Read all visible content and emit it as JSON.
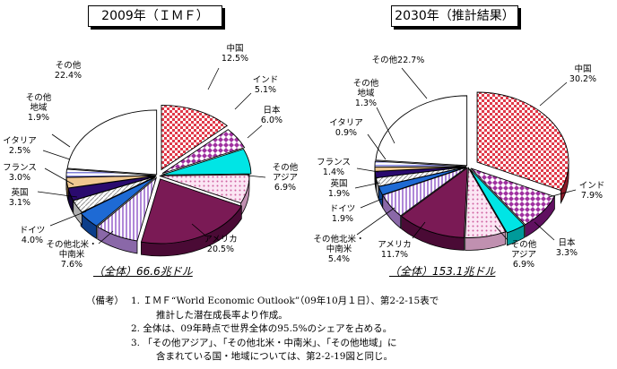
{
  "chart_data": [
    {
      "type": "pie",
      "title": "2009年（ＩＭＦ）",
      "total_label": "（全体）66.6兆ドル",
      "unit": "%",
      "slices": [
        {
          "name": "中国",
          "value": 12.5,
          "value_label": "12.5%"
        },
        {
          "name": "インド",
          "value": 5.1,
          "value_label": "5.1%"
        },
        {
          "name": "日本",
          "value": 6.0,
          "value_label": "6.0%"
        },
        {
          "name": "その他アジア",
          "value": 6.9,
          "value_label": "6.9%"
        },
        {
          "name": "アメリカ",
          "value": 20.5,
          "value_label": "20.5%"
        },
        {
          "name": "その他北米・中南米",
          "value": 7.6,
          "value_label": "7.6%"
        },
        {
          "name": "ドイツ",
          "value": 4.0,
          "value_label": "4.0%"
        },
        {
          "name": "英国",
          "value": 3.1,
          "value_label": "3.1%"
        },
        {
          "name": "フランス",
          "value": 3.0,
          "value_label": "3.0%"
        },
        {
          "name": "イタリア",
          "value": 2.5,
          "value_label": "2.5%"
        },
        {
          "name": "その他地域",
          "value": 1.9,
          "value_label": "1.9%"
        },
        {
          "name": "その他",
          "value": 22.4,
          "value_label": "22.4%"
        }
      ]
    },
    {
      "type": "pie",
      "title": "2030年（推計結果）",
      "total_label": "（全体）153.1兆ドル",
      "unit": "%",
      "slices": [
        {
          "name": "中国",
          "value": 30.2,
          "value_label": "30.2%"
        },
        {
          "name": "インド",
          "value": 7.9,
          "value_label": "7.9%"
        },
        {
          "name": "日本",
          "value": 3.3,
          "value_label": "3.3%"
        },
        {
          "name": "その他アジア",
          "value": 6.9,
          "value_label": "6.9%"
        },
        {
          "name": "アメリカ",
          "value": 11.7,
          "value_label": "11.7%"
        },
        {
          "name": "その他北米・中南米",
          "value": 5.4,
          "value_label": "5.4%"
        },
        {
          "name": "ドイツ",
          "value": 1.9,
          "value_label": "1.9%"
        },
        {
          "name": "英国",
          "value": 1.9,
          "value_label": "1.9%"
        },
        {
          "name": "フランス",
          "value": 1.4,
          "value_label": "1.4%"
        },
        {
          "name": "イタリア",
          "value": 0.9,
          "value_label": "0.9%"
        },
        {
          "name": "その他地域",
          "value": 1.3,
          "value_label": "1.3%"
        },
        {
          "name": "その他",
          "value": 22.7,
          "value_label": "22.7%"
        }
      ]
    }
  ],
  "slice_labels": {
    "left": [
      [
        "中国",
        "12.5%"
      ],
      [
        "インド",
        "5.1%"
      ],
      [
        "日本",
        "6.0%"
      ],
      [
        "その他",
        "アジア",
        "6.9%"
      ],
      [
        "アメリカ",
        "20.5%"
      ],
      [
        "その他北米・",
        "中南米",
        "7.6%"
      ],
      [
        "ドイツ",
        "4.0%"
      ],
      [
        "英国",
        "3.1%"
      ],
      [
        "フランス",
        "3.0%"
      ],
      [
        "イタリア",
        "2.5%"
      ],
      [
        "その他",
        "地域",
        "1.9%"
      ],
      [
        "その他",
        "22.4%"
      ]
    ],
    "right": [
      [
        "中国",
        "30.2%"
      ],
      [
        "インド",
        "7.9%"
      ],
      [
        "日本",
        "3.3%"
      ],
      [
        "その他",
        "アジア",
        "6.9%"
      ],
      [
        "アメリカ",
        "11.7%"
      ],
      [
        "その他北米・",
        "中南米",
        "5.4%"
      ],
      [
        "ドイツ",
        "1.9%"
      ],
      [
        "英国",
        "1.9%"
      ],
      [
        "フランス",
        "1.4%"
      ],
      [
        "イタリア",
        "0.9%"
      ],
      [
        "その他",
        "地域",
        "1.3%"
      ],
      [
        "その他22.7%"
      ]
    ]
  },
  "slice_colors": [
    "#e03a4a",
    "#a030a0",
    "#00e5e5",
    "#f4c8e8",
    "#7a1a55",
    "#c8a8e0",
    "#1e6ad4",
    "#ffffff",
    "#2a0a6e",
    "#f0c890",
    "#9090e0",
    "#ffffff"
  ],
  "notes": {
    "label": "（備考）",
    "items": [
      {
        "num": "1.",
        "lines": [
          "ＩＭＦ“World Economic Outlook”（09年10月１日）、第2-2-15表で",
          "推計した潜在成長率より作成。"
        ]
      },
      {
        "num": "2.",
        "lines": [
          "全体は、09年時点で世界全体の95.5%のシェアを占める。"
        ]
      },
      {
        "num": "3.",
        "lines": [
          "「その他アジア」、「その他北米・中南米」、「その他地域」に",
          "含まれている国・地域については、第2-2-19図と同じ。"
        ]
      }
    ]
  }
}
